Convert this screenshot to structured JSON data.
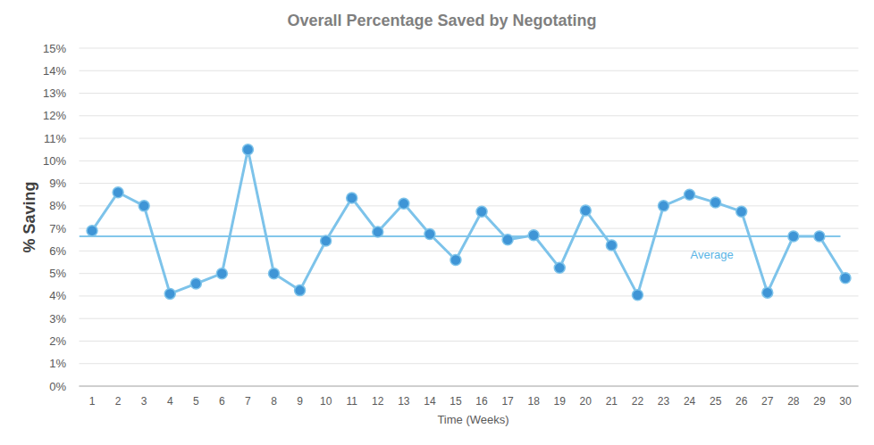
{
  "chart_data": {
    "type": "line",
    "title": "Overall Percentage Saved by Negotating",
    "x_label": "Time (Weeks)",
    "y_label": "% Saving",
    "categories": [
      "1",
      "2",
      "3",
      "4",
      "5",
      "6",
      "7",
      "8",
      "9",
      "10",
      "11",
      "12",
      "13",
      "14",
      "15",
      "16",
      "17",
      "18",
      "19",
      "20",
      "21",
      "22",
      "23",
      "24",
      "25",
      "26",
      "27",
      "28",
      "29",
      "30"
    ],
    "values": [
      6.9,
      8.6,
      8.0,
      4.1,
      4.55,
      5.0,
      10.5,
      5.0,
      4.25,
      6.45,
      8.35,
      6.85,
      8.1,
      6.75,
      5.6,
      7.75,
      6.5,
      6.7,
      5.25,
      7.8,
      6.25,
      4.05,
      8.0,
      8.5,
      8.15,
      7.75,
      4.15,
      6.65,
      6.65,
      4.8
    ],
    "color": "#7dc3ea",
    "marker": "circle",
    "ylim": [
      0,
      15
    ],
    "yticks": [
      {
        "value": 0,
        "label": "0%"
      },
      {
        "value": 1,
        "label": "1%"
      },
      {
        "value": 2,
        "label": "2%"
      },
      {
        "value": 3,
        "label": "3%"
      },
      {
        "value": 4,
        "label": "4%"
      },
      {
        "value": 5,
        "label": "5%"
      },
      {
        "value": 6,
        "label": "6%"
      },
      {
        "value": 7,
        "label": "7%"
      },
      {
        "value": 8,
        "label": "8%"
      },
      {
        "value": 9,
        "label": "9%"
      },
      {
        "value": 10,
        "label": "10%"
      },
      {
        "value": 11,
        "label": "11%"
      },
      {
        "value": 12,
        "label": "12%"
      },
      {
        "value": 13,
        "label": "13%"
      },
      {
        "value": 14,
        "label": "14%"
      },
      {
        "value": 15,
        "label": "15%"
      }
    ],
    "grid": true,
    "annotations": [
      {
        "text": "Average",
        "y": 6.65,
        "color": "#5ab4e5"
      }
    ]
  }
}
